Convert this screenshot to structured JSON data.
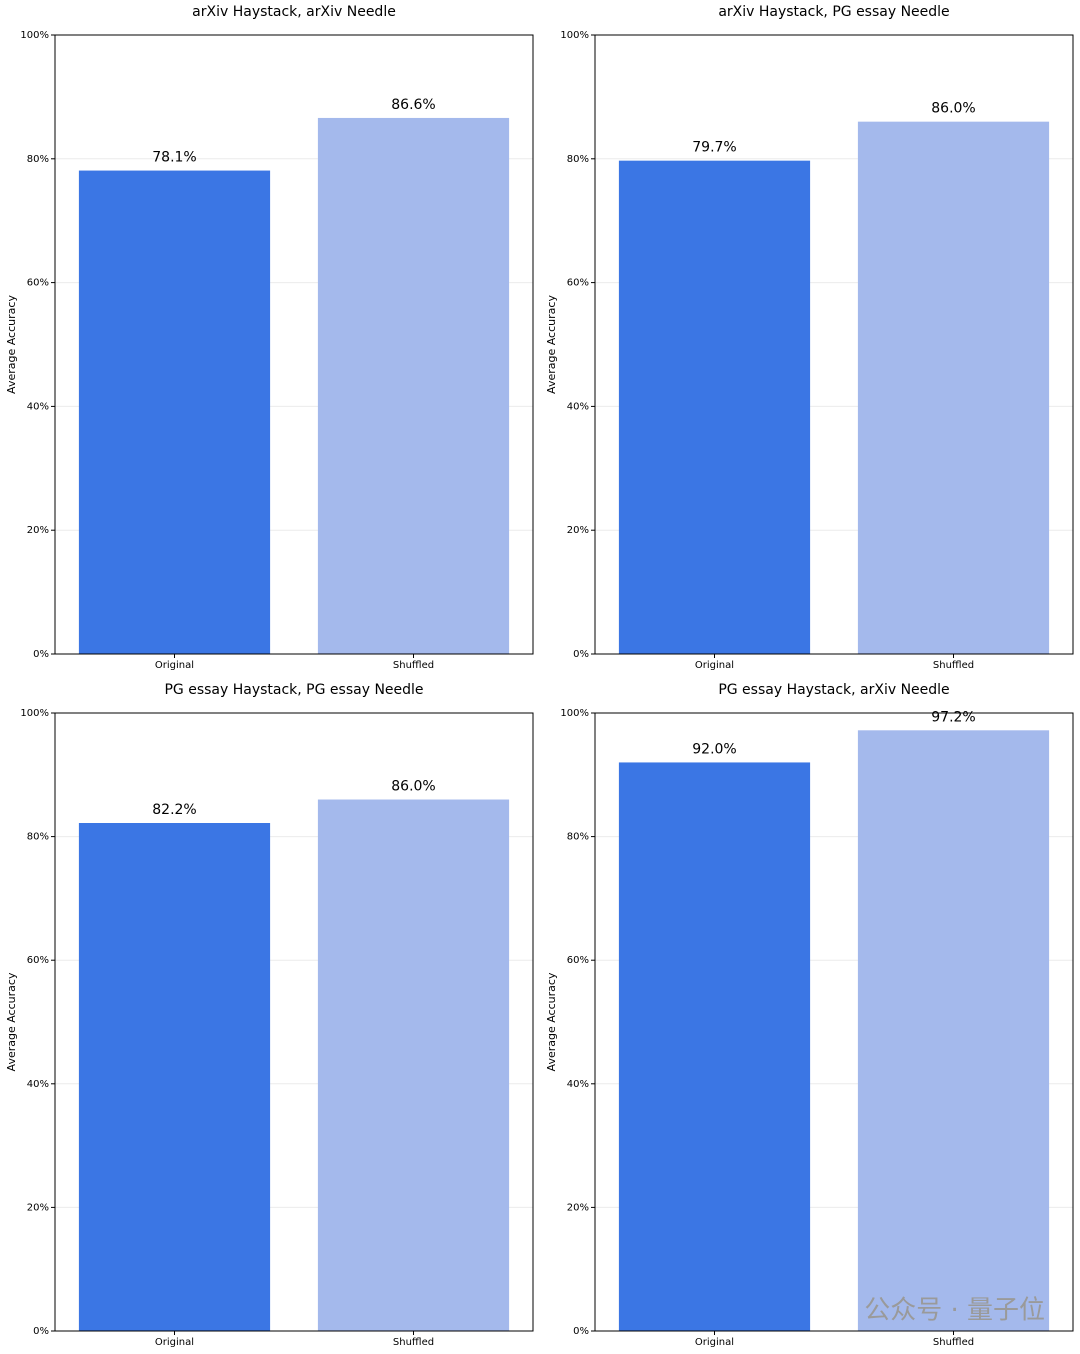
{
  "chart_data": [
    {
      "type": "bar",
      "title": "arXiv Haystack, arXiv Needle",
      "y_label": "Average Accuracy",
      "categories": [
        "Original",
        "Shuffled"
      ],
      "values": [
        78.1,
        86.6
      ],
      "value_labels": [
        "78.1%",
        "86.6%"
      ],
      "colors": [
        "#3b76e4",
        "#a4b9ec"
      ],
      "ylim": [
        0,
        100
      ],
      "yticks": [
        {
          "value": 0,
          "label": "0%"
        },
        {
          "value": 20,
          "label": "20%"
        },
        {
          "value": 40,
          "label": "40%"
        },
        {
          "value": 60,
          "label": "60%"
        },
        {
          "value": 80,
          "label": "80%"
        },
        {
          "value": 100,
          "label": "100%"
        }
      ],
      "grid": true
    },
    {
      "type": "bar",
      "title": "arXiv Haystack, PG essay Needle",
      "y_label": "Average Accuracy",
      "categories": [
        "Original",
        "Shuffled"
      ],
      "values": [
        79.7,
        86.0
      ],
      "value_labels": [
        "79.7%",
        "86.0%"
      ],
      "colors": [
        "#3b76e4",
        "#a4b9ec"
      ],
      "ylim": [
        0,
        100
      ],
      "yticks": [
        {
          "value": 0,
          "label": "0%"
        },
        {
          "value": 20,
          "label": "20%"
        },
        {
          "value": 40,
          "label": "40%"
        },
        {
          "value": 60,
          "label": "60%"
        },
        {
          "value": 80,
          "label": "80%"
        },
        {
          "value": 100,
          "label": "100%"
        }
      ],
      "grid": true
    },
    {
      "type": "bar",
      "title": "PG essay Haystack, PG essay Needle",
      "y_label": "Average Accuracy",
      "categories": [
        "Original",
        "Shuffled"
      ],
      "values": [
        82.2,
        86.0
      ],
      "value_labels": [
        "82.2%",
        "86.0%"
      ],
      "colors": [
        "#3b76e4",
        "#a4b9ec"
      ],
      "ylim": [
        0,
        100
      ],
      "yticks": [
        {
          "value": 0,
          "label": "0%"
        },
        {
          "value": 20,
          "label": "20%"
        },
        {
          "value": 40,
          "label": "40%"
        },
        {
          "value": 60,
          "label": "60%"
        },
        {
          "value": 80,
          "label": "80%"
        },
        {
          "value": 100,
          "label": "100%"
        }
      ],
      "grid": true
    },
    {
      "type": "bar",
      "title": "PG essay Haystack, arXiv Needle",
      "y_label": "Average Accuracy",
      "categories": [
        "Original",
        "Shuffled"
      ],
      "values": [
        92.0,
        97.2
      ],
      "value_labels": [
        "92.0%",
        "97.2%"
      ],
      "colors": [
        "#3b76e4",
        "#a4b9ec"
      ],
      "ylim": [
        0,
        100
      ],
      "yticks": [
        {
          "value": 0,
          "label": "0%"
        },
        {
          "value": 20,
          "label": "20%"
        },
        {
          "value": 40,
          "label": "40%"
        },
        {
          "value": 60,
          "label": "60%"
        },
        {
          "value": 80,
          "label": "80%"
        },
        {
          "value": 100,
          "label": "100%"
        }
      ],
      "grid": true
    }
  ],
  "watermark": "公众号 · 量子位"
}
